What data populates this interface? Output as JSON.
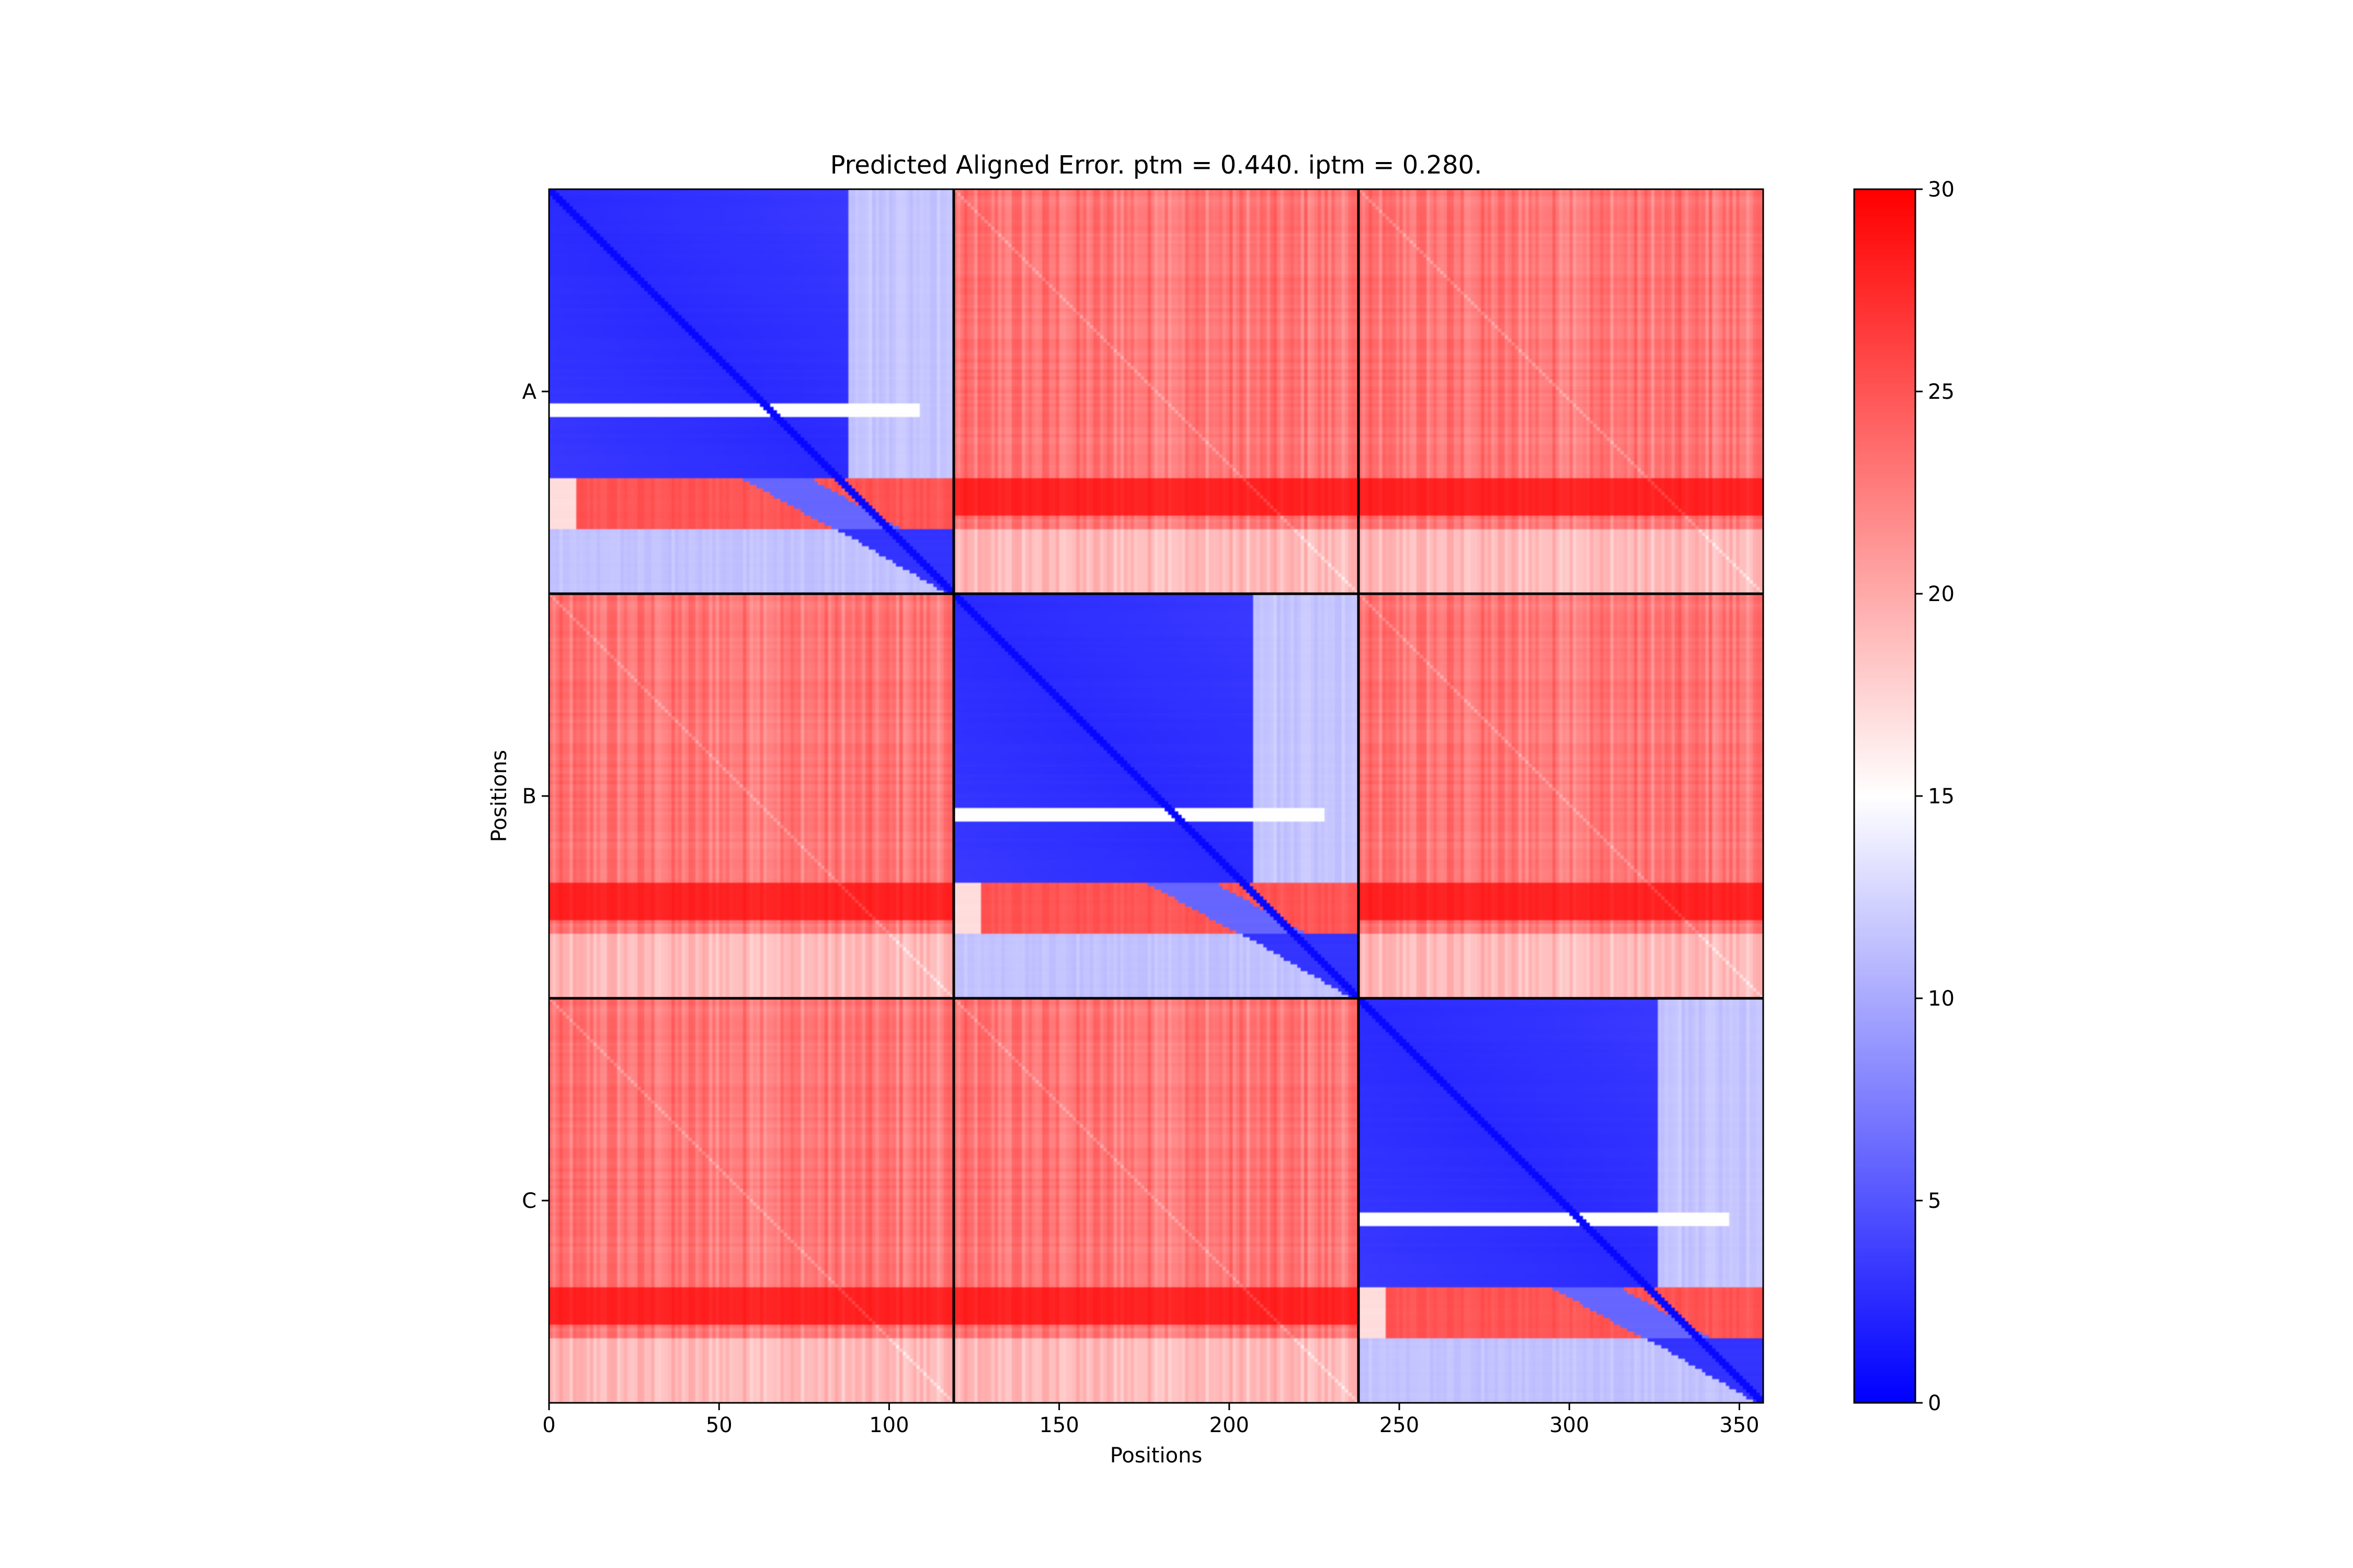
{
  "chart_data": {
    "type": "heatmap",
    "title": "Predicted Aligned Error. ptm = 0.440. iptm = 0.280.",
    "xlabel": "Positions",
    "ylabel": "Positions",
    "x_range": [
      0,
      357
    ],
    "y_range": [
      0,
      357
    ],
    "x_ticks": [
      0,
      50,
      100,
      150,
      200,
      250,
      300,
      350
    ],
    "chains": [
      {
        "label": "A",
        "start": 0,
        "end": 119
      },
      {
        "label": "B",
        "start": 119,
        "end": 238
      },
      {
        "label": "C",
        "start": 238,
        "end": 357
      }
    ],
    "colorbar": {
      "min": 0,
      "max": 30,
      "ticks": [
        0,
        5,
        10,
        15,
        20,
        25,
        30
      ],
      "colormap": "bwr",
      "low_color": "#0000ff",
      "mid_color": "#ffffff",
      "high_color": "#ff0000"
    },
    "blocks": {
      "intra_chain": {
        "background": 2.5,
        "diagonal": 0.5,
        "white_stripe_row": 65,
        "white_stripe_value": 15,
        "red_band_rows": [
          85,
          100
        ],
        "red_band_value": 25,
        "tail_cols_start": 88,
        "tail_value": 11,
        "lower_rows_start": 100,
        "lower_value": 11
      },
      "inter_chain": {
        "background": 23,
        "red_band_rows": [
          85,
          96
        ],
        "red_band_value": 28,
        "lower_rows_start": 100,
        "lower_value": 19
      }
    }
  }
}
